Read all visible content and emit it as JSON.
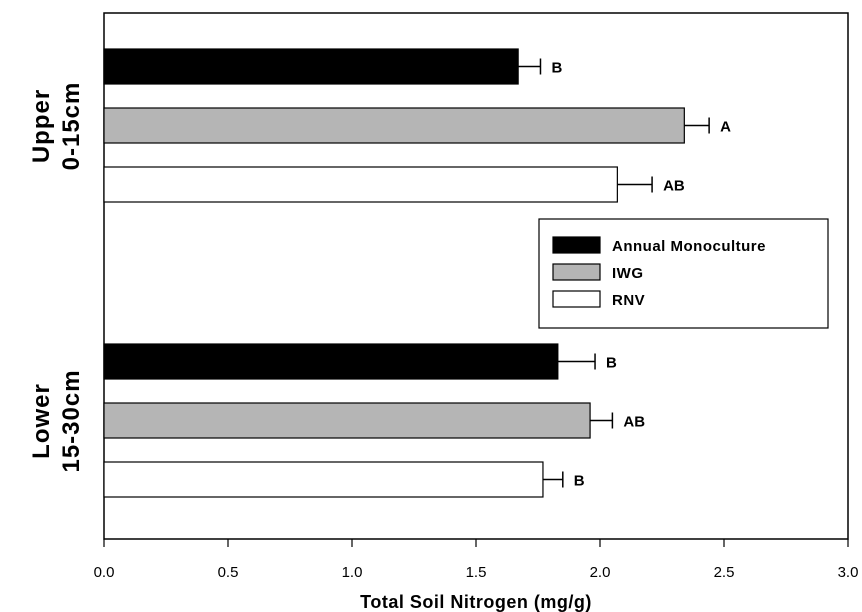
{
  "chart_data": {
    "type": "bar",
    "orientation": "horizontal",
    "xlabel": "Total Soil Nitrogen (mg/g)",
    "xlim": [
      0.0,
      3.0
    ],
    "xticks": [
      "0.0",
      "0.5",
      "1.0",
      "1.5",
      "2.0",
      "2.5",
      "3.0"
    ],
    "grid": false,
    "legend_position": "right",
    "groups": [
      {
        "label_lines": [
          "Upper",
          "0-15cm"
        ],
        "bars": [
          {
            "series": "Annual Monoculture",
            "value": 1.67,
            "error": 0.09,
            "letter": "B"
          },
          {
            "series": "IWG",
            "value": 2.34,
            "error": 0.1,
            "letter": "A"
          },
          {
            "series": "RNV",
            "value": 2.07,
            "error": 0.14,
            "letter": "AB"
          }
        ]
      },
      {
        "label_lines": [
          "Lower",
          "15-30cm"
        ],
        "bars": [
          {
            "series": "Annual Monoculture",
            "value": 1.83,
            "error": 0.15,
            "letter": "B"
          },
          {
            "series": "IWG",
            "value": 1.96,
            "error": 0.09,
            "letter": "AB"
          },
          {
            "series": "RNV",
            "value": 1.77,
            "error": 0.08,
            "letter": "B"
          }
        ]
      }
    ],
    "series": [
      {
        "name": "Annual Monoculture",
        "color": "#000000"
      },
      {
        "name": "IWG",
        "color": "#b5b5b5"
      },
      {
        "name": "RNV",
        "color": "#ffffff"
      }
    ]
  }
}
